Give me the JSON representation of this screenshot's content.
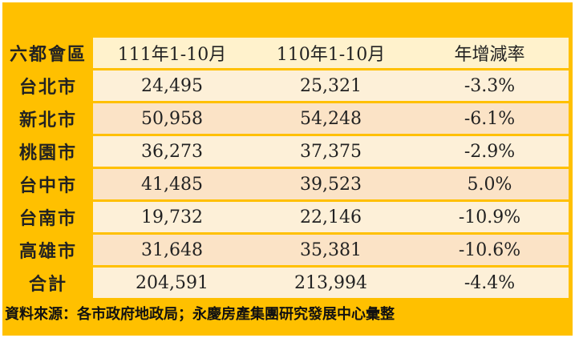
{
  "table": {
    "headers": [
      "六都會區",
      "111年1-10月",
      "110年1-10月",
      "年增減率"
    ],
    "rows": [
      {
        "city": "台北市",
        "y111": "24,495",
        "y110": "25,321",
        "rate": "-3.3%"
      },
      {
        "city": "新北市",
        "y111": "50,958",
        "y110": "54,248",
        "rate": "-6.1%"
      },
      {
        "city": "桃園市",
        "y111": "36,273",
        "y110": "37,375",
        "rate": "-2.9%"
      },
      {
        "city": "台中市",
        "y111": "41,485",
        "y110": "39,523",
        "rate": "5.0%"
      },
      {
        "city": "台南市",
        "y111": "19,732",
        "y110": "22,146",
        "rate": "-10.9%"
      },
      {
        "city": "高雄市",
        "y111": "31,648",
        "y110": "35,381",
        "rate": "-10.6%"
      }
    ],
    "total": {
      "city": "合計",
      "y111": "204,591",
      "y110": "213,994",
      "rate": "-4.4%"
    }
  },
  "source": "資料來源：各市政府地政局；永慶房產集團研究發展中心彙整",
  "colors": {
    "accent": "#ffc000",
    "header_cell": "#fff2cc",
    "row_light": "#fdf0d8",
    "row_dark": "#fbe3c6"
  }
}
